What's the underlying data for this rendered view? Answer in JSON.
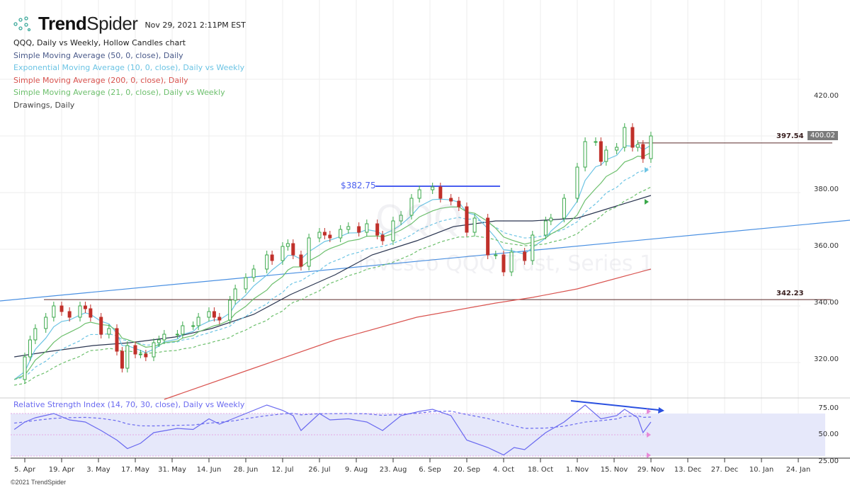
{
  "header": {
    "brand_bold": "Trend",
    "brand_light": "Spider",
    "timestamp": "Nov 29, 2021 2:11PM EST"
  },
  "legend": [
    {
      "text": "QQQ, Daily vs Weekly, Hollow Candles chart",
      "color": "#222222"
    },
    {
      "text": "Simple Moving Average (50, 0, close), Daily",
      "color": "#4a5a8a"
    },
    {
      "text": "Exponential Moving Average (10, 0, close), Daily vs Weekly",
      "color": "#6cc4e4"
    },
    {
      "text": "Simple Moving Average (200, 0, close), Daily",
      "color": "#d9534f"
    },
    {
      "text": "Simple Moving Average (21, 0, close), Daily vs Weekly",
      "color": "#6cbf6c"
    },
    {
      "text": "Drawings, Daily",
      "color": "#444444"
    }
  ],
  "watermark": {
    "symbol": "QQQ",
    "name": "Invesco QQQ Trust, Series 1"
  },
  "copyright": "©2021 TrendSpider",
  "chart_data": {
    "type": "candlestick",
    "y_ticks": [
      "420.00",
      "380.00",
      "360.00",
      "340.00",
      "320.00"
    ],
    "x_ticks": [
      "5. Apr",
      "19. Apr",
      "3. May",
      "17. May",
      "31. May",
      "14. Jun",
      "28. Jun",
      "12. Jul",
      "26. Jul",
      "9. Aug",
      "23. Aug",
      "6. Sep",
      "20. Sep",
      "4. Oct",
      "18. Oct",
      "1. Nov",
      "15. Nov",
      "29. Nov",
      "13. Dec",
      "27. Dec",
      "10. Jan",
      "24. Jan"
    ],
    "ylim": [
      305,
      425
    ],
    "last_price": "400.02",
    "levels": {
      "resistance": "397.54",
      "support": "342.23",
      "high_label": "$382.75"
    },
    "colors": {
      "up": "#3aa84a",
      "down": "#c0302a",
      "sma50": "#2a3550",
      "ema10": "#6cc4e4",
      "sma200": "#d9534f",
      "sma21": "#6cbf6c",
      "trend": "#4a90e2",
      "rsi": "#6a6af0"
    },
    "closes": [
      [
        "2021-04-01",
        314
      ],
      [
        "2021-04-05",
        322
      ],
      [
        "2021-04-07",
        328
      ],
      [
        "2021-04-09",
        332
      ],
      [
        "2021-04-13",
        336
      ],
      [
        "2021-04-16",
        340
      ],
      [
        "2021-04-19",
        338
      ],
      [
        "2021-04-22",
        336
      ],
      [
        "2021-04-26",
        340
      ],
      [
        "2021-04-28",
        339
      ],
      [
        "2021-04-30",
        336
      ],
      [
        "2021-05-04",
        330
      ],
      [
        "2021-05-07",
        332
      ],
      [
        "2021-05-10",
        324
      ],
      [
        "2021-05-12",
        318
      ],
      [
        "2021-05-14",
        326
      ],
      [
        "2021-05-17",
        323
      ],
      [
        "2021-05-19",
        323
      ],
      [
        "2021-05-21",
        322
      ],
      [
        "2021-05-24",
        327
      ],
      [
        "2021-05-26",
        328
      ],
      [
        "2021-05-28",
        330
      ],
      [
        "2021-06-02",
        330
      ],
      [
        "2021-06-04",
        333
      ],
      [
        "2021-06-08",
        333
      ],
      [
        "2021-06-10",
        336
      ],
      [
        "2021-06-14",
        338
      ],
      [
        "2021-06-16",
        336
      ],
      [
        "2021-06-18",
        335
      ],
      [
        "2021-06-22",
        342
      ],
      [
        "2021-06-24",
        346
      ],
      [
        "2021-06-28",
        350
      ],
      [
        "2021-07-01",
        353
      ],
      [
        "2021-07-06",
        358
      ],
      [
        "2021-07-08",
        356
      ],
      [
        "2021-07-12",
        361
      ],
      [
        "2021-07-14",
        362
      ],
      [
        "2021-07-16",
        358
      ],
      [
        "2021-07-19",
        354
      ],
      [
        "2021-07-22",
        364
      ],
      [
        "2021-07-26",
        366
      ],
      [
        "2021-07-28",
        365
      ],
      [
        "2021-07-30",
        364
      ],
      [
        "2021-08-03",
        367
      ],
      [
        "2021-08-06",
        368
      ],
      [
        "2021-08-10",
        366
      ],
      [
        "2021-08-13",
        369
      ],
      [
        "2021-08-17",
        365
      ],
      [
        "2021-08-19",
        363
      ],
      [
        "2021-08-23",
        370
      ],
      [
        "2021-08-26",
        372
      ],
      [
        "2021-08-30",
        378
      ],
      [
        "2021-09-02",
        381
      ],
      [
        "2021-09-07",
        382
      ],
      [
        "2021-09-10",
        378
      ],
      [
        "2021-09-14",
        377
      ],
      [
        "2021-09-17",
        375
      ],
      [
        "2021-09-20",
        366
      ],
      [
        "2021-09-23",
        371
      ],
      [
        "2021-09-28",
        358
      ],
      [
        "2021-10-01",
        358
      ],
      [
        "2021-10-04",
        352
      ],
      [
        "2021-10-07",
        359
      ],
      [
        "2021-10-12",
        356
      ],
      [
        "2021-10-15",
        365
      ],
      [
        "2021-10-20",
        370
      ],
      [
        "2021-10-22",
        371
      ],
      [
        "2021-10-27",
        378
      ],
      [
        "2021-11-01",
        389
      ],
      [
        "2021-11-04",
        398
      ],
      [
        "2021-11-08",
        398
      ],
      [
        "2021-11-10",
        391
      ],
      [
        "2021-11-12",
        395
      ],
      [
        "2021-11-16",
        396
      ],
      [
        "2021-11-19",
        403
      ],
      [
        "2021-11-22",
        396
      ],
      [
        "2021-11-24",
        397
      ],
      [
        "2021-11-26",
        392
      ],
      [
        "2021-11-29",
        400
      ]
    ],
    "sma50": [
      [
        "2021-04-01",
        322
      ],
      [
        "2021-04-15",
        324
      ],
      [
        "2021-05-01",
        326
      ],
      [
        "2021-05-15",
        327
      ],
      [
        "2021-06-01",
        329
      ],
      [
        "2021-06-15",
        332
      ],
      [
        "2021-07-01",
        337
      ],
      [
        "2021-07-15",
        344
      ],
      [
        "2021-08-01",
        351
      ],
      [
        "2021-08-15",
        358
      ],
      [
        "2021-09-01",
        363
      ],
      [
        "2021-09-15",
        368
      ],
      [
        "2021-10-01",
        370
      ],
      [
        "2021-10-15",
        370
      ],
      [
        "2021-11-01",
        371
      ],
      [
        "2021-11-15",
        375
      ],
      [
        "2021-11-29",
        379
      ]
    ],
    "sma200": [
      [
        "2021-05-28",
        307
      ],
      [
        "2021-07-01",
        318
      ],
      [
        "2021-08-01",
        328
      ],
      [
        "2021-09-01",
        336
      ],
      [
        "2021-10-01",
        341
      ],
      [
        "2021-10-15",
        343
      ],
      [
        "2021-11-01",
        346
      ],
      [
        "2021-11-29",
        353
      ]
    ],
    "rsi": {
      "title": "Relative Strength Index (14, 70, 30, close), Daily vs Weekly",
      "y_ticks": [
        "75.00",
        "50.00",
        "25.00"
      ],
      "bands": [
        30,
        50,
        70
      ],
      "values": [
        [
          "2021-04-01",
          55
        ],
        [
          "2021-04-05",
          62
        ],
        [
          "2021-04-09",
          66
        ],
        [
          "2021-04-16",
          70
        ],
        [
          "2021-04-22",
          64
        ],
        [
          "2021-04-28",
          62
        ],
        [
          "2021-05-04",
          54
        ],
        [
          "2021-05-10",
          45
        ],
        [
          "2021-05-14",
          37
        ],
        [
          "2021-05-19",
          42
        ],
        [
          "2021-05-24",
          52
        ],
        [
          "2021-06-02",
          56
        ],
        [
          "2021-06-08",
          55
        ],
        [
          "2021-06-14",
          65
        ],
        [
          "2021-06-18",
          60
        ],
        [
          "2021-06-24",
          66
        ],
        [
          "2021-06-28",
          70
        ],
        [
          "2021-07-06",
          78
        ],
        [
          "2021-07-12",
          73
        ],
        [
          "2021-07-16",
          68
        ],
        [
          "2021-07-19",
          54
        ],
        [
          "2021-07-26",
          70
        ],
        [
          "2021-07-30",
          64
        ],
        [
          "2021-08-06",
          65
        ],
        [
          "2021-08-13",
          62
        ],
        [
          "2021-08-19",
          54
        ],
        [
          "2021-08-26",
          68
        ],
        [
          "2021-09-02",
          72
        ],
        [
          "2021-09-07",
          74
        ],
        [
          "2021-09-14",
          68
        ],
        [
          "2021-09-20",
          45
        ],
        [
          "2021-09-28",
          38
        ],
        [
          "2021-10-04",
          31
        ],
        [
          "2021-10-08",
          38
        ],
        [
          "2021-10-12",
          36
        ],
        [
          "2021-10-20",
          52
        ],
        [
          "2021-10-27",
          62
        ],
        [
          "2021-11-04",
          78
        ],
        [
          "2021-11-10",
          65
        ],
        [
          "2021-11-16",
          68
        ],
        [
          "2021-11-19",
          74
        ],
        [
          "2021-11-24",
          66
        ],
        [
          "2021-11-26",
          52
        ],
        [
          "2021-11-29",
          62
        ]
      ]
    }
  }
}
